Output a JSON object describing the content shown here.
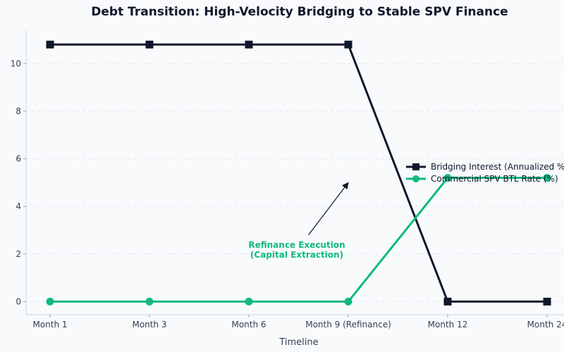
{
  "chart_data": {
    "type": "line",
    "title": "Debt Transition: High-Velocity Bridging to Stable SPV Finance",
    "xlabel": "Timeline",
    "ylabel": "",
    "categories": [
      "Month 1",
      "Month 3",
      "Month 6",
      "Month 9 (Refinance)",
      "Month 12",
      "Month 24"
    ],
    "ylim": [
      -0.55,
      11.4
    ],
    "yticks": [
      0,
      2,
      4,
      6,
      8,
      10
    ],
    "grid": "y-dashed",
    "legend_position": "right",
    "series": [
      {
        "name": "Bridging Interest (Annualized %)",
        "values": [
          10.8,
          10.8,
          10.8,
          10.8,
          0,
          0
        ],
        "color": "#0f172a",
        "marker": "square"
      },
      {
        "name": "Commercial SPV BTL Rate (%)",
        "values": [
          0,
          0,
          0,
          0,
          5.2,
          5.2
        ],
        "color": "#10b981",
        "marker": "circle"
      }
    ],
    "annotation": {
      "lines": [
        "Refinance Execution",
        "(Capital Extraction)"
      ],
      "color": "#10b981",
      "text_x": 3,
      "text_y": 2.2,
      "arrow_from_x": 2.6,
      "arrow_from_y": 2.8,
      "arrow_to_x": 3,
      "arrow_to_y": 5
    }
  }
}
